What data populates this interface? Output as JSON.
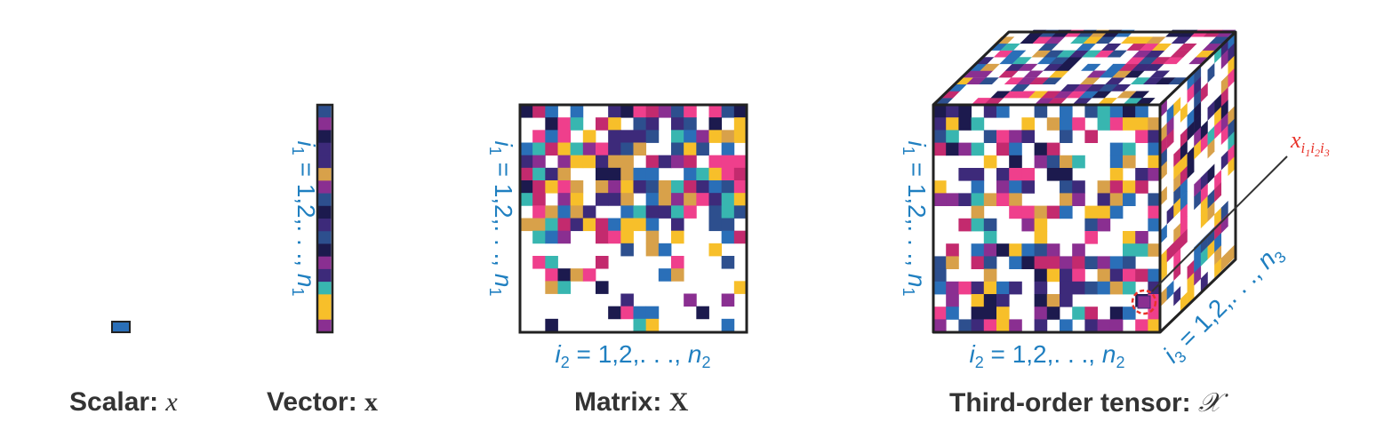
{
  "colors": {
    "index_text": "#1f7fc0",
    "element_label": "#e8332a",
    "highlight_circle": "#e8332a",
    "outline": "#222222",
    "palette": [
      "#1c1a4e",
      "#ef3f8c",
      "#2a6fb8",
      "#38b6b0",
      "#f7bf2a",
      "#3d2a7a",
      "#8a2f91",
      "#c32a6e",
      "#d8a14a",
      "#2d4f8e"
    ]
  },
  "scalar": {
    "caption_label": "Scalar: ",
    "caption_symbol": "x"
  },
  "vector": {
    "caption_label": "Vector: ",
    "caption_symbol": "x",
    "index_i1": {
      "var": "i",
      "sub": "1",
      "eq": " = 1,2,. . ., ",
      "end_var": "n",
      "end_sub": "1"
    }
  },
  "matrix": {
    "caption_label": "Matrix: ",
    "caption_symbol": "X",
    "index_i1": {
      "var": "i",
      "sub": "1",
      "eq": " = 1,2,. . ., ",
      "end_var": "n",
      "end_sub": "1"
    },
    "index_i2": {
      "var": "i",
      "sub": "2",
      "eq": " = 1,2,. . ., ",
      "end_var": "n",
      "end_sub": "2"
    }
  },
  "tensor": {
    "caption_label": "Third-order tensor: ",
    "caption_symbol": "𝒳",
    "index_i1": {
      "var": "i",
      "sub": "1",
      "eq": " = 1,2,. . ., ",
      "end_var": "n",
      "end_sub": "1"
    },
    "index_i2": {
      "var": "i",
      "sub": "2",
      "eq": " = 1,2,. . ., ",
      "end_var": "n",
      "end_sub": "2"
    },
    "index_i3": {
      "var": "i",
      "sub": "3",
      "eq": " = 1,2,. . ., ",
      "end_var": "n",
      "end_sub": "3"
    },
    "element_label": {
      "var": "x",
      "subs": [
        "i",
        "1",
        "i",
        "2",
        "i",
        "3"
      ]
    }
  }
}
